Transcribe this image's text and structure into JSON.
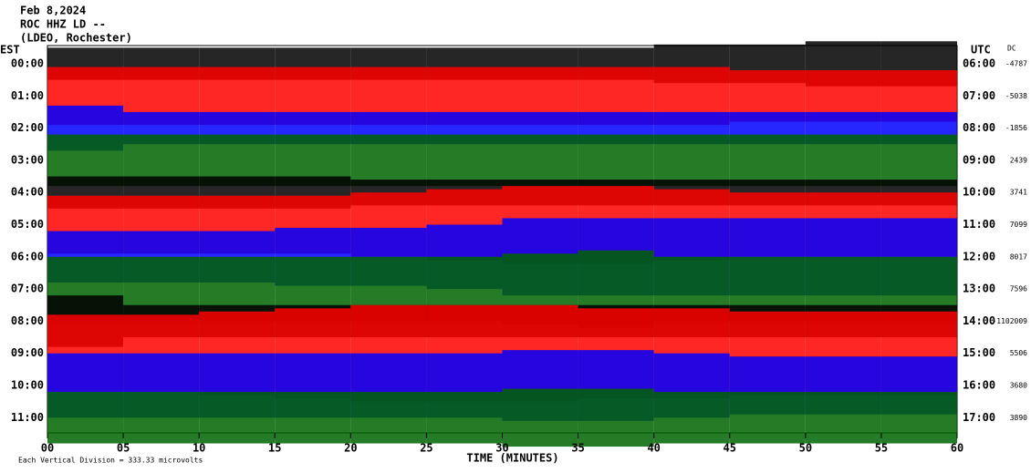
{
  "chart_data": {
    "type": "helicorder",
    "title": "Feb 8,2024",
    "subtitle": "ROC HHZ LD --",
    "source": "(LDEO, Rochester)",
    "left_axis_label": "EST",
    "right_axis_label": "UTC",
    "dc_label": "DC",
    "xlabel": "TIME (MINUTES)",
    "note": "Each Vertical Division = 333.33 microvolts",
    "xlim": [
      0,
      60
    ],
    "xticks": [
      {
        "value": 0,
        "label": "00"
      },
      {
        "value": 5,
        "label": "05"
      },
      10,
      15,
      20,
      25,
      30,
      35,
      40,
      45,
      50,
      55,
      60
    ],
    "x": [
      2.5,
      7.5,
      12.5,
      17.5,
      22.5,
      27.5,
      32.5,
      37.5,
      42.5,
      47.5,
      52.5,
      57.5
    ],
    "rows": [
      {
        "est": "00:00",
        "utc": "06:00",
        "dc": -4787,
        "color": "#000000",
        "values": [
          0.5,
          0.5,
          0.5,
          0.5,
          0.5,
          0.5,
          0.5,
          0.5,
          0.6,
          0.6,
          0.7,
          0.7
        ]
      },
      {
        "est": "01:00",
        "utc": "07:00",
        "dc": -5038,
        "color": "#ff0000",
        "values": [
          0.9,
          0.9,
          0.9,
          0.9,
          0.9,
          0.9,
          0.9,
          0.9,
          0.9,
          0.8,
          0.8,
          0.8
        ]
      },
      {
        "est": "02:00",
        "utc": "08:00",
        "dc": -1856,
        "color": "#0000ff",
        "values": [
          0.7,
          0.5,
          0.5,
          0.5,
          0.5,
          0.5,
          0.5,
          0.5,
          0.5,
          0.5,
          0.5,
          0.5
        ]
      },
      {
        "est": "03:00",
        "utc": "09:00",
        "dc": 2439,
        "color": "#006400",
        "values": [
          0.8,
          0.8,
          0.8,
          0.8,
          0.8,
          0.8,
          0.8,
          0.8,
          0.8,
          0.8,
          0.8,
          0.8
        ]
      },
      {
        "est": "04:00",
        "utc": "10:00",
        "dc": 3741,
        "color": "#000000",
        "values": [
          0.5,
          0.5,
          0.5,
          0.5,
          0.4,
          0.4,
          0.4,
          0.4,
          0.4,
          0.4,
          0.4,
          0.4
        ]
      },
      {
        "est": "05:00",
        "utc": "11:00",
        "dc": 7099,
        "color": "#ff0000",
        "values": [
          0.9,
          0.9,
          0.9,
          0.9,
          1.0,
          1.1,
          1.2,
          1.2,
          1.1,
          1.0,
          1.0,
          1.0
        ]
      },
      {
        "est": "06:00",
        "utc": "12:00",
        "dc": 8017,
        "color": "#0000ff",
        "values": [
          0.8,
          0.8,
          0.8,
          0.9,
          0.9,
          1.0,
          1.2,
          1.2,
          1.2,
          1.2,
          1.2,
          1.2
        ]
      },
      {
        "est": "07:00",
        "utc": "13:00",
        "dc": 7596,
        "color": "#006400",
        "values": [
          1.0,
          1.0,
          1.0,
          1.0,
          1.0,
          1.0,
          1.1,
          1.2,
          1.0,
          1.0,
          1.0,
          1.0
        ]
      },
      {
        "est": "08:00",
        "utc": "14:00",
        "dc": -1102009,
        "color": "#000000",
        "values": [
          0.8,
          0.5,
          0.5,
          0.5,
          0.5,
          0.5,
          0.5,
          0.5,
          0.5,
          0.5,
          0.5,
          0.5
        ]
      },
      {
        "est": "09:00",
        "utc": "15:00",
        "dc": 5506,
        "color": "#ff0000",
        "values": [
          1.2,
          1.2,
          1.3,
          1.4,
          1.5,
          1.5,
          1.5,
          1.4,
          1.4,
          1.3,
          1.3,
          1.3
        ]
      },
      {
        "est": "10:00",
        "utc": "16:00",
        "dc": 3680,
        "color": "#0000ff",
        "values": [
          1.0,
          1.0,
          1.0,
          1.0,
          1.0,
          1.0,
          1.1,
          1.1,
          1.0,
          0.9,
          0.9,
          0.9
        ]
      },
      {
        "est": "11:00",
        "utc": "17:00",
        "dc": 3890,
        "color": "#006400",
        "values": [
          0.8,
          0.8,
          0.8,
          0.8,
          0.8,
          0.8,
          0.9,
          0.9,
          0.8,
          0.8,
          0.8,
          0.8
        ]
      }
    ]
  }
}
